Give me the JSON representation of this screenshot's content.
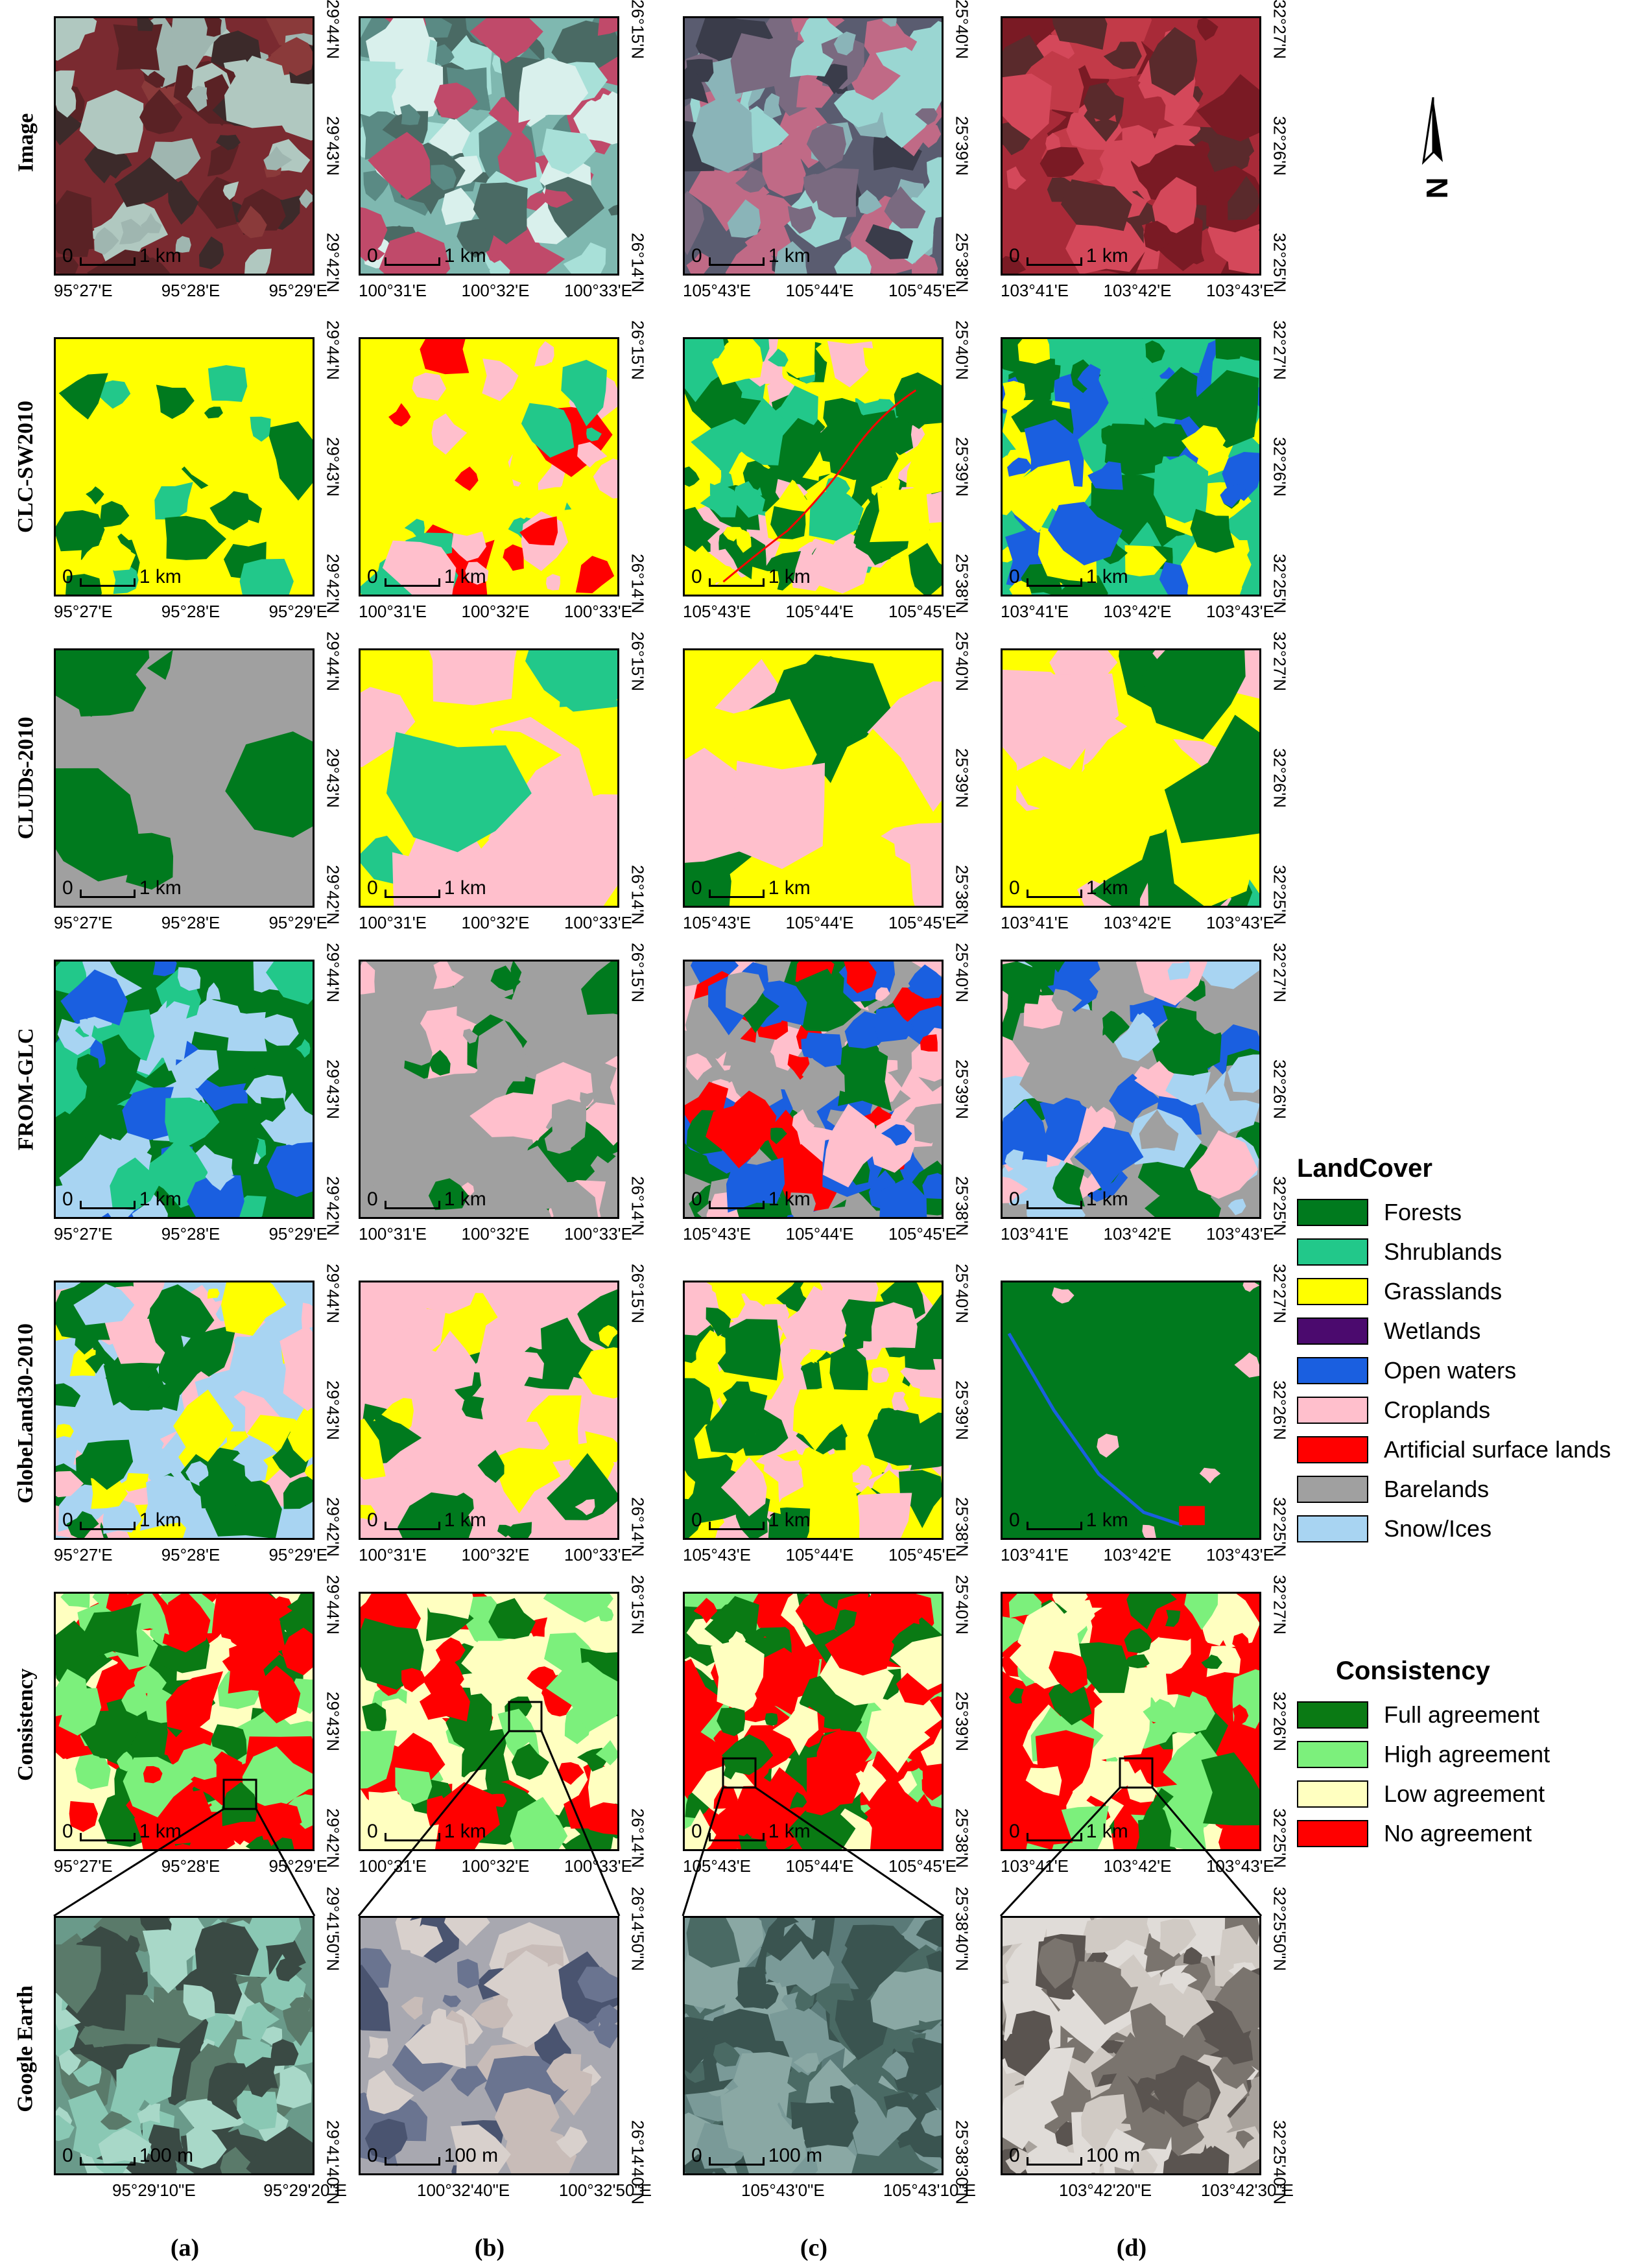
{
  "rows": [
    {
      "label": "Image",
      "key": "image"
    },
    {
      "label": "CLC-SW2010",
      "key": "clc"
    },
    {
      "label": "CLUDs-2010",
      "key": "cluds"
    },
    {
      "label": "FROM-GLC",
      "key": "fromglc"
    },
    {
      "label": "GlobeLand30-2010",
      "key": "globeland"
    },
    {
      "label": "Consistency",
      "key": "consistency"
    },
    {
      "label": "Google Earth",
      "key": "google"
    }
  ],
  "columns": [
    {
      "label": "(a)",
      "x_ticks": [
        "95°27'E",
        "95°28'E",
        "95°29'E"
      ],
      "y_ticks": [
        "29°44'N",
        "29°43'N",
        "29°42'N"
      ],
      "ge_x_ticks": [
        "95°29'10\"E",
        "95°29'20\"E"
      ],
      "ge_y_ticks": [
        "29°41'50\"N",
        "29°41'40\"N"
      ]
    },
    {
      "label": "(b)",
      "x_ticks": [
        "100°31'E",
        "100°32'E",
        "100°33'E"
      ],
      "y_ticks": [
        "26°15'N",
        "26°14'N"
      ],
      "ge_x_ticks": [
        "100°32'40\"E",
        "100°32'50\"E"
      ],
      "ge_y_ticks": [
        "26°14'50\"N",
        "26°14'40\"N"
      ]
    },
    {
      "label": "(c)",
      "x_ticks": [
        "105°43'E",
        "105°44'E",
        "105°45'E"
      ],
      "y_ticks": [
        "25°40'N",
        "25°39'N",
        "25°38'N"
      ],
      "ge_x_ticks": [
        "105°43'0\"E",
        "105°43'10\"E"
      ],
      "ge_y_ticks": [
        "25°38'40\"N",
        "25°38'30\"N"
      ]
    },
    {
      "label": "(d)",
      "x_ticks": [
        "103°41'E",
        "103°42'E",
        "103°43'E"
      ],
      "y_ticks": [
        "32°27'N",
        "32°26'N",
        "32°25'N"
      ],
      "ge_x_ticks": [
        "103°42'20\"E",
        "103°42'30\"E"
      ],
      "ge_y_ticks": [
        "32°25'50\"N",
        "32°25'40\"N"
      ]
    }
  ],
  "scale": {
    "zero": "0",
    "km": "1 km",
    "m": "100 m"
  },
  "north": {
    "letter": "N",
    "icon": "north-arrow-icon"
  },
  "landcover_legend": {
    "title": "LandCover",
    "items": [
      {
        "label": "Forests",
        "color": "#007a1e"
      },
      {
        "label": "Shrublands",
        "color": "#22c88a"
      },
      {
        "label": "Grasslands",
        "color": "#ffff00"
      },
      {
        "label": "Wetlands",
        "color": "#4b0a6e"
      },
      {
        "label": "Open waters",
        "color": "#1a5fe0"
      },
      {
        "label": "Croplands",
        "color": "#ffbfcc"
      },
      {
        "label": "Artificial surface lands",
        "color": "#ff0000"
      },
      {
        "label": "Barelands",
        "color": "#a0a0a0"
      },
      {
        "label": "Snow/Ices",
        "color": "#a8d4f2"
      }
    ]
  },
  "consistency_legend": {
    "title": "Consistency",
    "items": [
      {
        "label": "Full agreement",
        "color": "#0a7a14"
      },
      {
        "label": "High agreement",
        "color": "#7cf07c"
      },
      {
        "label": "Low agreement",
        "color": "#ffffc0"
      },
      {
        "label": "No agreement",
        "color": "#ff0000"
      }
    ]
  }
}
